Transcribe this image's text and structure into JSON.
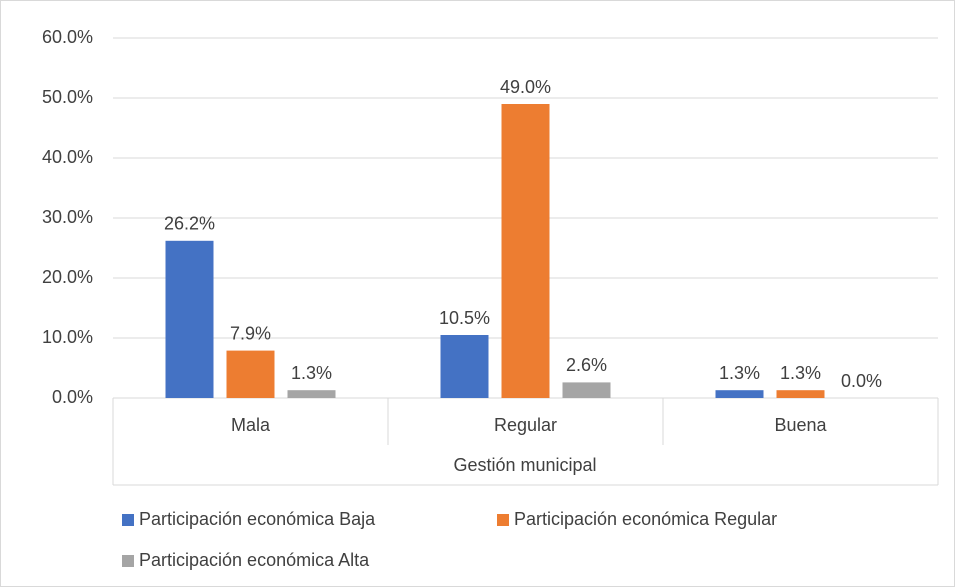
{
  "chart_data": {
    "type": "bar",
    "x_label": "Gestión municipal",
    "categories": [
      "Mala",
      "Regular",
      "Buena"
    ],
    "series": [
      {
        "name": "Participación económica Baja",
        "color": "#4472c4",
        "values": [
          26.2,
          10.5,
          1.3
        ],
        "value_labels": [
          "26.2%",
          "10.5%",
          "1.3%"
        ]
      },
      {
        "name": "Participación económica Regular",
        "color": "#ed7d31",
        "values": [
          7.9,
          49.0,
          1.3
        ],
        "value_labels": [
          "7.9%",
          "49.0%",
          "1.3%"
        ]
      },
      {
        "name": "Participación económica Alta",
        "color": "#a5a5a5",
        "values": [
          1.3,
          2.6,
          0.0
        ],
        "value_labels": [
          "1.3%",
          "2.6%",
          "0.0%"
        ]
      }
    ],
    "ylim": [
      0,
      60
    ],
    "yticks": [
      {
        "value": 0,
        "label": "0.0%"
      },
      {
        "value": 10,
        "label": "10.0%"
      },
      {
        "value": 20,
        "label": "20.0%"
      },
      {
        "value": 30,
        "label": "30.0%"
      },
      {
        "value": 40,
        "label": "40.0%"
      },
      {
        "value": 50,
        "label": "50.0%"
      },
      {
        "value": 60,
        "label": "60.0%"
      }
    ],
    "grid": true,
    "legend": "bottom"
  }
}
